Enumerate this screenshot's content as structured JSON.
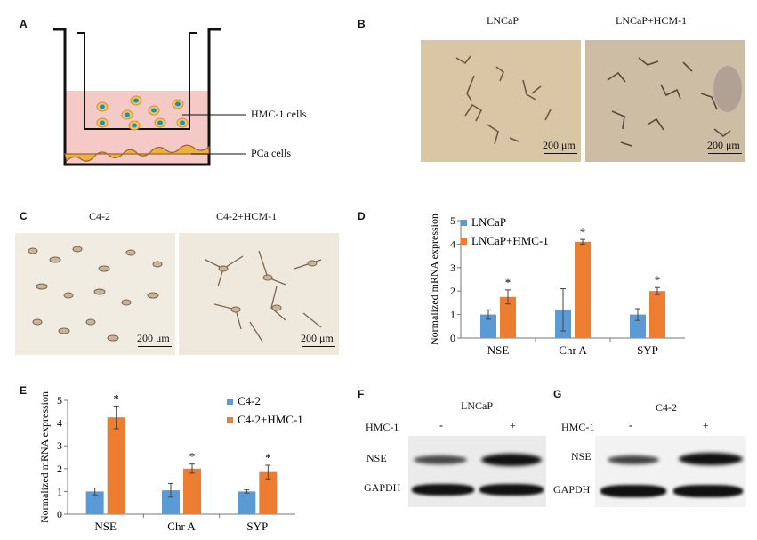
{
  "panels": {
    "A": {
      "label": "A",
      "hmc_label": "HMC-1 cells",
      "pca_label": "PCa cells"
    },
    "B": {
      "label": "B",
      "left_title": "LNCaP",
      "right_title": "LNCaP+HCM-1",
      "scale_left": "200 μm",
      "scale_right": "200 μm"
    },
    "C": {
      "label": "C",
      "left_title": "C4-2",
      "right_title": "C4-2+HCM-1",
      "scale_left": "200 μm",
      "scale_right": "200 μm"
    },
    "D": {
      "label": "D"
    },
    "E": {
      "label": "E"
    },
    "F": {
      "label": "F",
      "cell_line": "LNCaP",
      "treatment_label": "HMC-1",
      "lane_minus": "-",
      "lane_plus": "+",
      "row_target": "NSE",
      "row_control": "GAPDH"
    },
    "G": {
      "label": "G",
      "cell_line": "C4-2",
      "treatment_label": "HMC-1",
      "lane_minus": "-",
      "lane_plus": "+",
      "row_target": "NSE",
      "row_control": "GAPDH"
    }
  },
  "colors": {
    "control": "#5b9bd5",
    "treated": "#ed7d31",
    "medium": "#f4c9c6",
    "cell_fill": "#f2c46b",
    "cell_nucleus": "#1f8fb4",
    "micro_bg": "#d8c6a4",
    "micro_bg_c": "#f1ece2"
  },
  "chart_data": [
    {
      "panel": "D",
      "type": "bar",
      "categories": [
        "NSE",
        "Chr A",
        "SYP"
      ],
      "series": [
        {
          "name": "LNCaP",
          "values": [
            1.0,
            1.2,
            1.0
          ],
          "errors": [
            0.2,
            0.9,
            0.25
          ]
        },
        {
          "name": "LNCaP+HMC-1",
          "values": [
            1.75,
            4.1,
            2.0
          ],
          "errors": [
            0.3,
            0.1,
            0.15
          ]
        }
      ],
      "significance": [
        "*",
        "*",
        "*"
      ],
      "ylabel": "Normalized mRNA expression",
      "ylim": [
        0,
        5
      ],
      "yticks": [
        0,
        1,
        2,
        3,
        4,
        5
      ],
      "legend": "top-left",
      "grid": false
    },
    {
      "panel": "E",
      "type": "bar",
      "categories": [
        "NSE",
        "Chr A",
        "SYP"
      ],
      "series": [
        {
          "name": "C4-2",
          "values": [
            1.0,
            1.05,
            1.0
          ],
          "errors": [
            0.15,
            0.3,
            0.07
          ]
        },
        {
          "name": "C4-2+HMC-1",
          "values": [
            4.25,
            2.0,
            1.85
          ],
          "errors": [
            0.5,
            0.2,
            0.3
          ]
        }
      ],
      "significance": [
        "*",
        "*",
        "*"
      ],
      "ylabel": "Normalized mRNA expression",
      "ylim": [
        0,
        5
      ],
      "yticks": [
        0,
        1,
        2,
        3,
        4,
        5
      ],
      "legend": "top-right",
      "grid": false
    }
  ]
}
